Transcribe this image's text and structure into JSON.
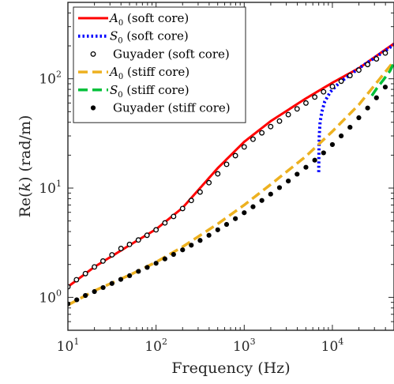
{
  "chart_data": {
    "type": "line",
    "title": "",
    "xlabel": "Frequency (Hz)",
    "ylabel_parts": [
      "Re(",
      "k",
      ") (rad/m)"
    ],
    "xscale": "log",
    "yscale": "log",
    "xlim": [
      10,
      50000
    ],
    "ylim": [
      0.5,
      500
    ],
    "x_ticks": [
      {
        "base": "10",
        "exp": "1",
        "value": 10
      },
      {
        "base": "10",
        "exp": "2",
        "value": 100
      },
      {
        "base": "10",
        "exp": "3",
        "value": 1000
      },
      {
        "base": "10",
        "exp": "4",
        "value": 10000
      }
    ],
    "y_ticks": [
      {
        "base": "10",
        "exp": "0",
        "value": 1
      },
      {
        "base": "10",
        "exp": "1",
        "value": 10
      },
      {
        "base": "10",
        "exp": "2",
        "value": 100
      }
    ],
    "grid": false,
    "legend_position": "top-left",
    "series": [
      {
        "name_main": "A",
        "name_sub": "0",
        "name_suffix": "(soft core)",
        "style": "line",
        "color": "#ff0000",
        "dash": "solid",
        "x": [
          10,
          20,
          50,
          100,
          200,
          500,
          1000,
          2000,
          5000,
          10000,
          20000,
          50000
        ],
        "y": [
          1.25,
          1.9,
          3.0,
          4.2,
          6.6,
          15.2,
          26.5,
          41,
          66,
          92,
          125,
          210
        ]
      },
      {
        "name_main": "S",
        "name_sub": "0",
        "name_suffix": "(soft core)",
        "style": "line",
        "color": "#0000ff",
        "dash": "dotted",
        "x": [
          7000,
          7030,
          7100,
          7250,
          7600,
          8200,
          9500,
          12000,
          20000,
          30000,
          50000
        ],
        "y": [
          14,
          20,
          30,
          40,
          50,
          62,
          76,
          92,
          125,
          155,
          205
        ]
      },
      {
        "name_main": "",
        "name_sub": "",
        "name_suffix": "Guyader (soft core)",
        "style": "marker",
        "color": "#000000",
        "marker": "open-circle",
        "x": [
          10,
          12.5,
          15.8,
          20,
          25,
          31.6,
          40,
          50,
          63,
          79,
          100,
          126,
          158,
          200,
          251,
          316,
          398,
          501,
          631,
          794,
          1000,
          1259,
          1585,
          1995,
          2512,
          3162,
          3981,
          5012,
          6310,
          7943,
          10000,
          12589,
          15849,
          19953,
          25119,
          31623,
          39811
        ],
        "y": [
          1.25,
          1.45,
          1.65,
          1.9,
          2.15,
          2.45,
          2.8,
          3.05,
          3.35,
          3.7,
          4.15,
          4.8,
          5.5,
          6.5,
          7.7,
          9.2,
          11.2,
          13.5,
          16.5,
          19.8,
          23.8,
          28,
          32,
          36.5,
          41,
          47,
          53,
          60,
          68,
          76,
          85,
          95,
          107,
          120,
          135,
          152,
          172
        ]
      },
      {
        "name_main": "A",
        "name_sub": "0",
        "name_suffix": "(stiff core)",
        "style": "line",
        "color": "#edb120",
        "dash": "dashed",
        "x": [
          10,
          20,
          50,
          100,
          200,
          500,
          1000,
          2000,
          5000,
          10000,
          20000,
          50000
        ],
        "y": [
          0.85,
          1.15,
          1.6,
          2.1,
          2.9,
          4.7,
          7.0,
          10.8,
          19.5,
          33,
          58,
          145
        ]
      },
      {
        "name_main": "S",
        "name_sub": "0",
        "name_suffix": "(stiff core)",
        "style": "line",
        "color": "#00c03a",
        "dash": "dashed",
        "x": [
          28000,
          32000,
          38000,
          45000,
          50000
        ],
        "y": [
          70,
          82,
          98,
          118,
          140
        ]
      },
      {
        "name_main": "",
        "name_sub": "",
        "name_suffix": "Guyader (stiff core)",
        "style": "marker",
        "color": "#000000",
        "marker": "filled-circle",
        "x": [
          10,
          12.6,
          15.8,
          20,
          25.1,
          31.6,
          39.8,
          50.1,
          63.1,
          79.4,
          100,
          126,
          158,
          200,
          251,
          316,
          398,
          501,
          631,
          794,
          1000,
          1259,
          1585,
          1995,
          2512,
          3162,
          3981,
          5012,
          6310,
          7943,
          10000,
          12589,
          15849,
          19953,
          25119,
          31623,
          39811
        ],
        "y": [
          0.87,
          0.95,
          1.04,
          1.13,
          1.23,
          1.34,
          1.46,
          1.58,
          1.73,
          1.88,
          2.05,
          2.25,
          2.47,
          2.72,
          3.0,
          3.32,
          3.7,
          4.15,
          4.65,
          5.25,
          5.95,
          6.75,
          7.7,
          8.8,
          10.1,
          11.6,
          13.4,
          15.5,
          18,
          21,
          25,
          30,
          36,
          44,
          54,
          67,
          84
        ]
      }
    ]
  }
}
